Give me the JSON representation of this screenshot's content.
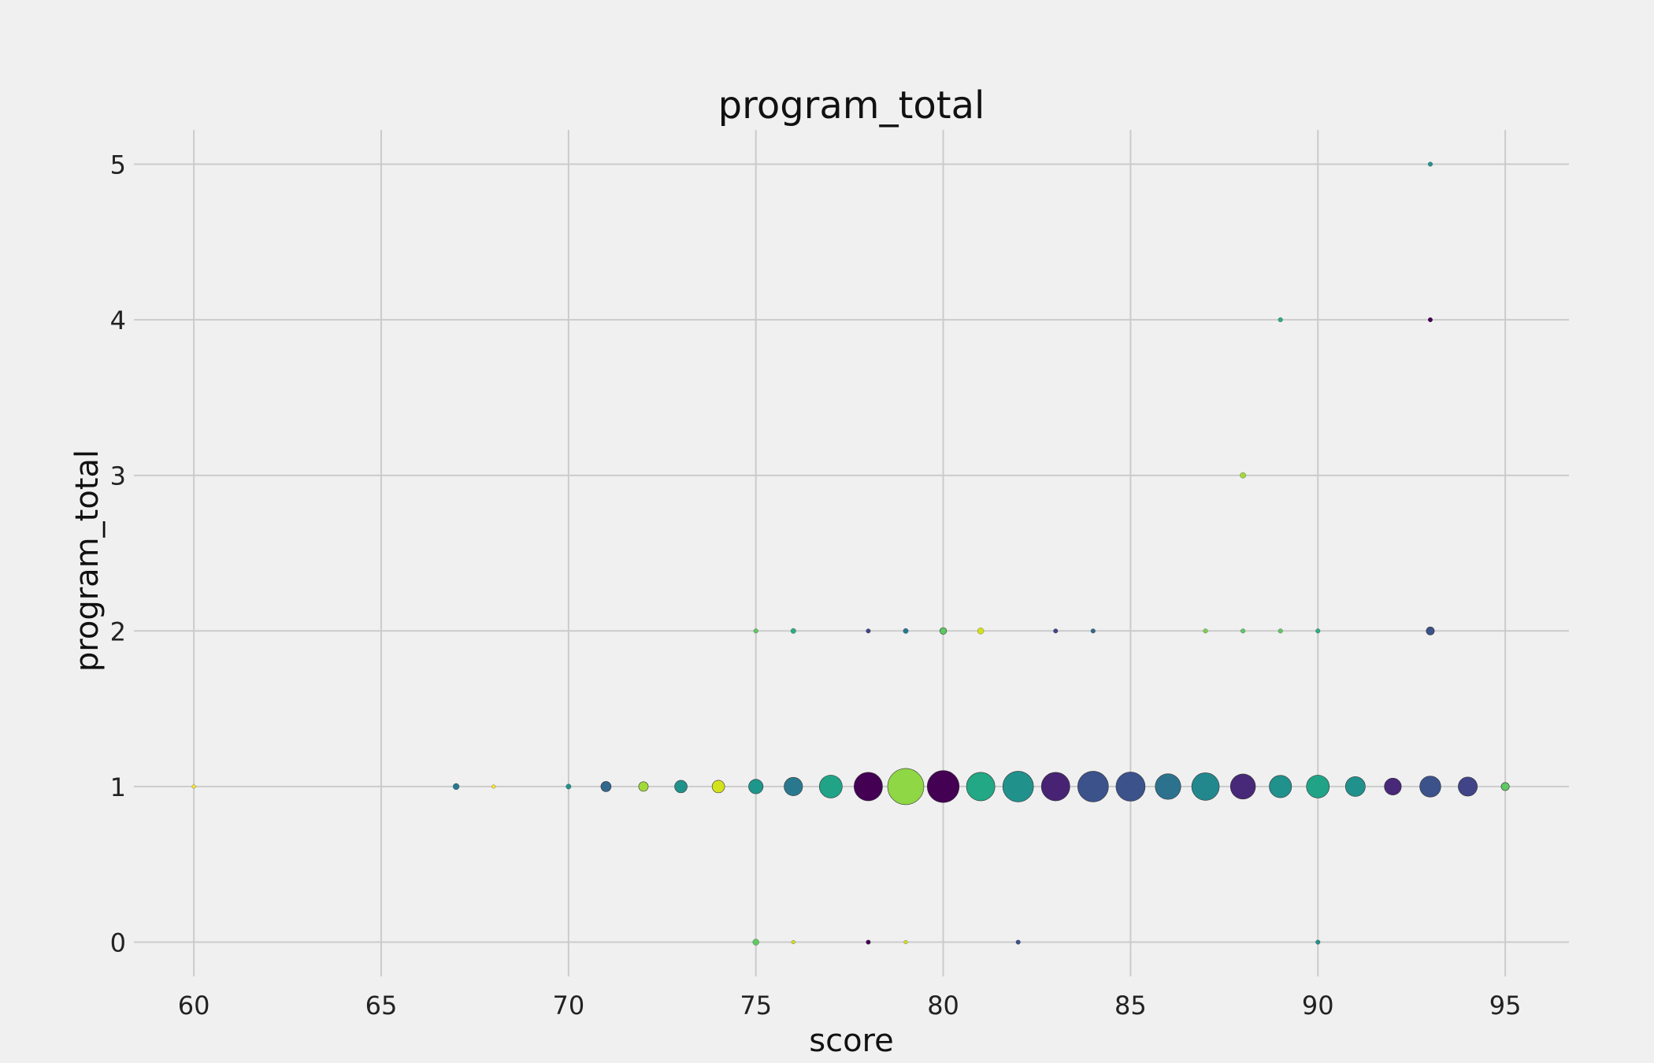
{
  "chart_data": {
    "type": "scatter",
    "title": "program_total",
    "xlabel": "score",
    "ylabel": "program_total",
    "xlim": [
      58.4,
      96.7
    ],
    "ylim": [
      -0.22,
      5.22
    ],
    "xticks": [
      60,
      65,
      70,
      75,
      80,
      85,
      90,
      95
    ],
    "yticks": [
      0,
      1,
      2,
      3,
      4,
      5
    ],
    "grid": true,
    "colormap": "viridis",
    "points": [
      {
        "x": 60,
        "y": 1,
        "size": 1,
        "color": "#fde725"
      },
      {
        "x": 67,
        "y": 1,
        "size": 3,
        "color": "#2a788e"
      },
      {
        "x": 68,
        "y": 1,
        "size": 1,
        "color": "#fde725"
      },
      {
        "x": 70,
        "y": 1,
        "size": 2,
        "color": "#21918c"
      },
      {
        "x": 71,
        "y": 1,
        "size": 8,
        "color": "#31688e"
      },
      {
        "x": 72,
        "y": 1,
        "size": 7,
        "color": "#a0da39"
      },
      {
        "x": 73,
        "y": 1,
        "size": 12,
        "color": "#21918c"
      },
      {
        "x": 74,
        "y": 1,
        "size": 12,
        "color": "#d2e21b"
      },
      {
        "x": 75,
        "y": 1,
        "size": 16,
        "color": "#1f968b"
      },
      {
        "x": 76,
        "y": 1,
        "size": 26,
        "color": "#2a788e"
      },
      {
        "x": 77,
        "y": 1,
        "size": 40,
        "color": "#20a386"
      },
      {
        "x": 78,
        "y": 1,
        "size": 62,
        "color": "#440154"
      },
      {
        "x": 79,
        "y": 1,
        "size": 100,
        "color": "#8fd744"
      },
      {
        "x": 80,
        "y": 1,
        "size": 78,
        "color": "#440154"
      },
      {
        "x": 81,
        "y": 1,
        "size": 62,
        "color": "#22a884"
      },
      {
        "x": 82,
        "y": 1,
        "size": 72,
        "color": "#21918c"
      },
      {
        "x": 83,
        "y": 1,
        "size": 62,
        "color": "#482374"
      },
      {
        "x": 84,
        "y": 1,
        "size": 72,
        "color": "#3b528b"
      },
      {
        "x": 85,
        "y": 1,
        "size": 65,
        "color": "#3b528b"
      },
      {
        "x": 86,
        "y": 1,
        "size": 50,
        "color": "#2c728e"
      },
      {
        "x": 87,
        "y": 1,
        "size": 58,
        "color": "#23888e"
      },
      {
        "x": 88,
        "y": 1,
        "size": 48,
        "color": "#482878"
      },
      {
        "x": 89,
        "y": 1,
        "size": 38,
        "color": "#21918c"
      },
      {
        "x": 90,
        "y": 1,
        "size": 40,
        "color": "#20a386"
      },
      {
        "x": 91,
        "y": 1,
        "size": 30,
        "color": "#21918c"
      },
      {
        "x": 92,
        "y": 1,
        "size": 22,
        "color": "#482878"
      },
      {
        "x": 93,
        "y": 1,
        "size": 34,
        "color": "#3b528b"
      },
      {
        "x": 94,
        "y": 1,
        "size": 28,
        "color": "#414487"
      },
      {
        "x": 95,
        "y": 1,
        "size": 5,
        "color": "#5ec962"
      },
      {
        "x": 75,
        "y": 2,
        "size": 1.5,
        "color": "#5ec962"
      },
      {
        "x": 76,
        "y": 2,
        "size": 2,
        "color": "#29af7f"
      },
      {
        "x": 78,
        "y": 2,
        "size": 1.5,
        "color": "#414487"
      },
      {
        "x": 79,
        "y": 2,
        "size": 2,
        "color": "#2a788e"
      },
      {
        "x": 80,
        "y": 2,
        "size": 3.5,
        "color": "#5ec962"
      },
      {
        "x": 81,
        "y": 2,
        "size": 3,
        "color": "#d2e21b"
      },
      {
        "x": 83,
        "y": 2,
        "size": 1.5,
        "color": "#414487"
      },
      {
        "x": 84,
        "y": 2,
        "size": 1.5,
        "color": "#31688e"
      },
      {
        "x": 87,
        "y": 2,
        "size": 1.5,
        "color": "#7ad151"
      },
      {
        "x": 88,
        "y": 2,
        "size": 1.5,
        "color": "#5ec962"
      },
      {
        "x": 89,
        "y": 2,
        "size": 1.5,
        "color": "#5ec962"
      },
      {
        "x": 90,
        "y": 2,
        "size": 1.5,
        "color": "#29af7f"
      },
      {
        "x": 93,
        "y": 2,
        "size": 5,
        "color": "#3b528b"
      },
      {
        "x": 88,
        "y": 3,
        "size": 2.5,
        "color": "#a0da39"
      },
      {
        "x": 89,
        "y": 4,
        "size": 1.5,
        "color": "#29af7f"
      },
      {
        "x": 93,
        "y": 4,
        "size": 1.5,
        "color": "#440154"
      },
      {
        "x": 93,
        "y": 5,
        "size": 1.5,
        "color": "#1f968b"
      },
      {
        "x": 75,
        "y": 0,
        "size": 3,
        "color": "#5ec962"
      },
      {
        "x": 76,
        "y": 0,
        "size": 1,
        "color": "#d2e21b"
      },
      {
        "x": 78,
        "y": 0,
        "size": 1.5,
        "color": "#440154"
      },
      {
        "x": 79,
        "y": 0,
        "size": 1,
        "color": "#d2e21b"
      },
      {
        "x": 82,
        "y": 0,
        "size": 1.5,
        "color": "#3b528b"
      },
      {
        "x": 90,
        "y": 0,
        "size": 1.5,
        "color": "#21918c"
      }
    ]
  }
}
